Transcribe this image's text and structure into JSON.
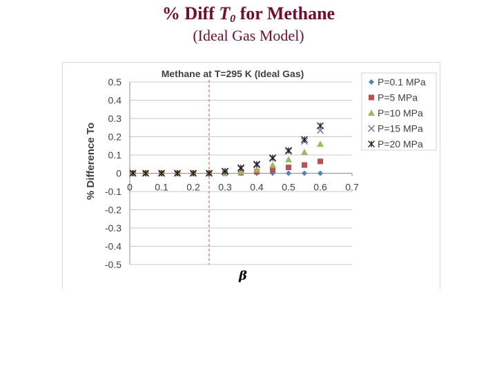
{
  "slide": {
    "title_prefix": "% Diff ",
    "title_var": "T",
    "title_sub": "0",
    "title_suffix": " for Methane",
    "subtitle": "(Ideal Gas Model)"
  },
  "chart_data": {
    "type": "scatter",
    "title": "Methane at T=295 K (Ideal Gas)",
    "xlabel": "β",
    "ylabel": "% Difference To",
    "xlim": [
      0,
      0.7
    ],
    "ylim": [
      -0.5,
      0.5
    ],
    "x_ticks": [
      "0",
      "0.1",
      "0.2",
      "0.3",
      "0.4",
      "0.5",
      "0.6",
      "0.7"
    ],
    "y_ticks": [
      "0.5",
      "0.4",
      "0.3",
      "0.2",
      "0.1",
      "0",
      "-0.1",
      "-0.2",
      "-0.3",
      "-0.4",
      "-0.5"
    ],
    "grid": "horizontal",
    "legend": "right",
    "reference_line": {
      "x": 0.25,
      "style": "dashed",
      "color": "#c0504d"
    },
    "series": [
      {
        "name": "P=0.1 MPa",
        "marker": "diamond",
        "color": "#4f81bd",
        "x": [
          0.01,
          0.05,
          0.1,
          0.15,
          0.2,
          0.25,
          0.3,
          0.35,
          0.4,
          0.45,
          0.5,
          0.55,
          0.6
        ],
        "y": [
          0,
          0,
          0,
          0,
          0,
          0,
          0,
          0,
          0,
          0,
          0,
          0,
          0
        ]
      },
      {
        "name": "P=5 MPa",
        "marker": "square",
        "color": "#c0504d",
        "x": [
          0.01,
          0.05,
          0.1,
          0.15,
          0.2,
          0.25,
          0.3,
          0.35,
          0.4,
          0.45,
          0.5,
          0.55,
          0.6
        ],
        "y": [
          0,
          0,
          0,
          0,
          0,
          0,
          0,
          0.003,
          0.008,
          0.017,
          0.032,
          0.045,
          0.065
        ]
      },
      {
        "name": "P=10 MPa",
        "marker": "triangle",
        "color": "#9bbb59",
        "x": [
          0.01,
          0.05,
          0.1,
          0.15,
          0.2,
          0.25,
          0.3,
          0.35,
          0.4,
          0.45,
          0.5,
          0.55,
          0.6
        ],
        "y": [
          0,
          0,
          0,
          0,
          0,
          0,
          0.002,
          0.008,
          0.02,
          0.045,
          0.075,
          0.115,
          0.16
        ]
      },
      {
        "name": "P=15 MPa",
        "marker": "x",
        "color": "#8064a2",
        "x": [
          0.01,
          0.05,
          0.1,
          0.15,
          0.2,
          0.25,
          0.3,
          0.35,
          0.4,
          0.45,
          0.5,
          0.55,
          0.6
        ],
        "y": [
          0,
          0,
          0,
          0,
          0,
          0,
          0.008,
          0.025,
          0.045,
          0.08,
          0.12,
          0.175,
          0.235
        ]
      },
      {
        "name": "P=20 MPa",
        "marker": "star",
        "color": "#1f1f1f",
        "x": [
          0.01,
          0.05,
          0.1,
          0.15,
          0.2,
          0.25,
          0.3,
          0.35,
          0.4,
          0.45,
          0.5,
          0.55,
          0.6
        ],
        "y": [
          0,
          0,
          0,
          0,
          0,
          0,
          0.012,
          0.03,
          0.05,
          0.085,
          0.125,
          0.185,
          0.26
        ]
      }
    ]
  }
}
